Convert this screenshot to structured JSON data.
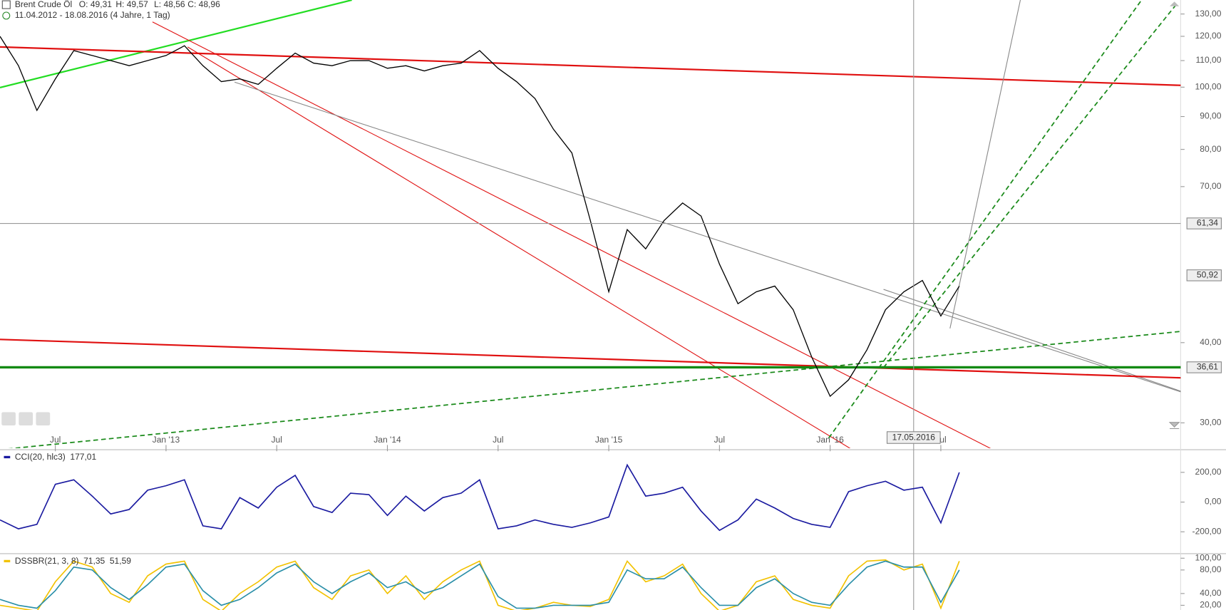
{
  "chart_data": [
    {
      "type": "line",
      "title": "Brent Crude Öl",
      "ohlc": [
        "O: 49,31",
        "H: 49,57",
        "L: 48,56",
        "C: 48,96"
      ],
      "range": "11.04.2012 - 18.08.2016 (4 Jahre, 1 Tag)",
      "log_scale": true,
      "x": [
        "2012-04",
        "2012-05",
        "2012-06",
        "2012-07",
        "2012-08",
        "2012-09",
        "2012-10",
        "2012-11",
        "2012-12",
        "2013-01",
        "2013-02",
        "2013-03",
        "2013-04",
        "2013-05",
        "2013-06",
        "2013-07",
        "2013-08",
        "2013-09",
        "2013-10",
        "2013-11",
        "2013-12",
        "2014-01",
        "2014-02",
        "2014-03",
        "2014-04",
        "2014-05",
        "2014-06",
        "2014-07",
        "2014-08",
        "2014-09",
        "2014-10",
        "2014-11",
        "2014-12",
        "2015-01",
        "2015-02",
        "2015-03",
        "2015-04",
        "2015-05",
        "2015-06",
        "2015-07",
        "2015-08",
        "2015-09",
        "2015-10",
        "2015-11",
        "2015-12",
        "2016-01",
        "2016-02",
        "2016-03",
        "2016-04",
        "2016-05",
        "2016-06",
        "2016-07",
        "2016-08"
      ],
      "series": [
        {
          "color": "#000000",
          "values": [
            120,
            108,
            92,
            103,
            114,
            112,
            110,
            108,
            110,
            112,
            116,
            108,
            102,
            103,
            101,
            107,
            113,
            109,
            108,
            110,
            110,
            107,
            108,
            106,
            108,
            109,
            114,
            107,
            102,
            96,
            86,
            79,
            62,
            48,
            60,
            56,
            62,
            66,
            63,
            53,
            46,
            48,
            49,
            45,
            38,
            33,
            35,
            39,
            45,
            48,
            50,
            44,
            49
          ]
        }
      ],
      "xlim": [
        "2012-04",
        "2017-08"
      ],
      "xticks": [
        {
          "value": "2012-07",
          "label": "Jul"
        },
        {
          "value": "2013-01",
          "label": "Jan '13"
        },
        {
          "value": "2013-07",
          "label": "Jul"
        },
        {
          "value": "2014-01",
          "label": "Jan '14"
        },
        {
          "value": "2014-07",
          "label": "Jul"
        },
        {
          "value": "2015-01",
          "label": "Jan '15"
        },
        {
          "value": "2015-07",
          "label": "Jul"
        },
        {
          "value": "2016-01",
          "label": "Jan '16"
        },
        {
          "value": "2016-07",
          "label": "Jul"
        }
      ],
      "ylim": [
        27.4,
        136.7
      ],
      "yticks": [
        {
          "value": 30,
          "label": "30,00"
        },
        {
          "value": 40,
          "label": "40,00"
        },
        {
          "value": 70,
          "label": "70,00"
        },
        {
          "value": 80,
          "label": "80,00"
        },
        {
          "value": 90,
          "label": "90,00"
        },
        {
          "value": 100,
          "label": "100,00"
        },
        {
          "value": 110,
          "label": "110,00"
        },
        {
          "value": 120,
          "label": "120,00"
        },
        {
          "value": 130,
          "label": "130,00"
        }
      ],
      "crosshair": {
        "x": "2016-05-17",
        "x_label": "17.05.2016",
        "y": 61.34,
        "y_label": "61,34"
      },
      "last_price": {
        "value": 50.92,
        "label": "50,92"
      },
      "levels": [
        {
          "value": 36.61,
          "label": "36,61",
          "color": "#138a13"
        }
      ]
    },
    {
      "type": "line",
      "last_label": "177,01",
      "x": [
        "2012-04",
        "2012-05",
        "2012-06",
        "2012-07",
        "2012-08",
        "2012-09",
        "2012-10",
        "2012-11",
        "2012-12",
        "2013-01",
        "2013-02",
        "2013-03",
        "2013-04",
        "2013-05",
        "2013-06",
        "2013-07",
        "2013-08",
        "2013-09",
        "2013-10",
        "2013-11",
        "2013-12",
        "2014-01",
        "2014-02",
        "2014-03",
        "2014-04",
        "2014-05",
        "2014-06",
        "2014-07",
        "2014-08",
        "2014-09",
        "2014-10",
        "2014-11",
        "2014-12",
        "2015-01",
        "2015-02",
        "2015-03",
        "2015-04",
        "2015-05",
        "2015-06",
        "2015-07",
        "2015-08",
        "2015-09",
        "2015-10",
        "2015-11",
        "2015-12",
        "2016-01",
        "2016-02",
        "2016-03",
        "2016-04",
        "2016-05",
        "2016-06",
        "2016-07",
        "2016-08"
      ],
      "series": [
        {
          "name": "CCI(20, hlc3)",
          "color": "#1a1aa0",
          "values": [
            -120,
            -180,
            -150,
            120,
            150,
            40,
            -80,
            -50,
            80,
            110,
            150,
            -160,
            -180,
            30,
            -40,
            100,
            180,
            -30,
            -70,
            60,
            50,
            -90,
            40,
            -60,
            30,
            60,
            150,
            -180,
            -160,
            -120,
            -150,
            -170,
            -140,
            -100,
            250,
            40,
            60,
            100,
            -60,
            -190,
            -120,
            20,
            -40,
            -110,
            -150,
            -170,
            70,
            110,
            140,
            80,
            100,
            -140,
            200
          ]
        }
      ],
      "xlim": [
        "2012-04",
        "2017-08"
      ],
      "ylim": [
        -342,
        342
      ],
      "yticks": [
        {
          "value": -200,
          "label": "-200,00"
        },
        {
          "value": 0,
          "label": "0,00"
        },
        {
          "value": 200,
          "label": "200,00"
        }
      ]
    },
    {
      "type": "line",
      "x": [
        "2012-04",
        "2012-05",
        "2012-06",
        "2012-07",
        "2012-08",
        "2012-09",
        "2012-10",
        "2012-11",
        "2012-12",
        "2013-01",
        "2013-02",
        "2013-03",
        "2013-04",
        "2013-05",
        "2013-06",
        "2013-07",
        "2013-08",
        "2013-09",
        "2013-10",
        "2013-11",
        "2013-12",
        "2014-01",
        "2014-02",
        "2014-03",
        "2014-04",
        "2014-05",
        "2014-06",
        "2014-07",
        "2014-08",
        "2014-09",
        "2014-10",
        "2014-11",
        "2014-12",
        "2015-01",
        "2015-02",
        "2015-03",
        "2015-04",
        "2015-05",
        "2015-06",
        "2015-07",
        "2015-08",
        "2015-09",
        "2015-10",
        "2015-11",
        "2015-12",
        "2016-01",
        "2016-02",
        "2016-03",
        "2016-04",
        "2016-05",
        "2016-06",
        "2016-07",
        "2016-08"
      ],
      "series": [
        {
          "name": "DSSBR(21, 3, 8)",
          "color": "#f2c200",
          "last_label": "71,35",
          "values": [
            20,
            15,
            10,
            60,
            95,
            85,
            40,
            25,
            70,
            90,
            95,
            30,
            10,
            40,
            60,
            85,
            95,
            50,
            30,
            70,
            80,
            40,
            70,
            30,
            60,
            80,
            95,
            20,
            10,
            15,
            25,
            20,
            18,
            30,
            95,
            60,
            70,
            90,
            40,
            10,
            20,
            60,
            70,
            30,
            20,
            15,
            70,
            95,
            97,
            80,
            90,
            15,
            95
          ]
        },
        {
          "color": "#2a8fa8",
          "last_label": "51,59",
          "values": [
            30,
            20,
            15,
            45,
            85,
            80,
            50,
            30,
            55,
            85,
            90,
            45,
            20,
            30,
            50,
            75,
            90,
            60,
            40,
            60,
            75,
            50,
            60,
            40,
            50,
            70,
            90,
            35,
            15,
            15,
            20,
            20,
            20,
            25,
            80,
            65,
            65,
            85,
            50,
            20,
            20,
            50,
            65,
            40,
            25,
            20,
            55,
            85,
            95,
            85,
            85,
            25,
            80
          ]
        }
      ],
      "xlim": [
        "2012-04",
        "2017-08"
      ],
      "ylim": [
        12,
        105
      ],
      "yticks": [
        {
          "value": 20,
          "label": "20,00"
        },
        {
          "value": 40,
          "label": "40,00"
        },
        {
          "value": 80,
          "label": "80,00"
        },
        {
          "value": 100,
          "label": "100,00"
        }
      ]
    }
  ]
}
